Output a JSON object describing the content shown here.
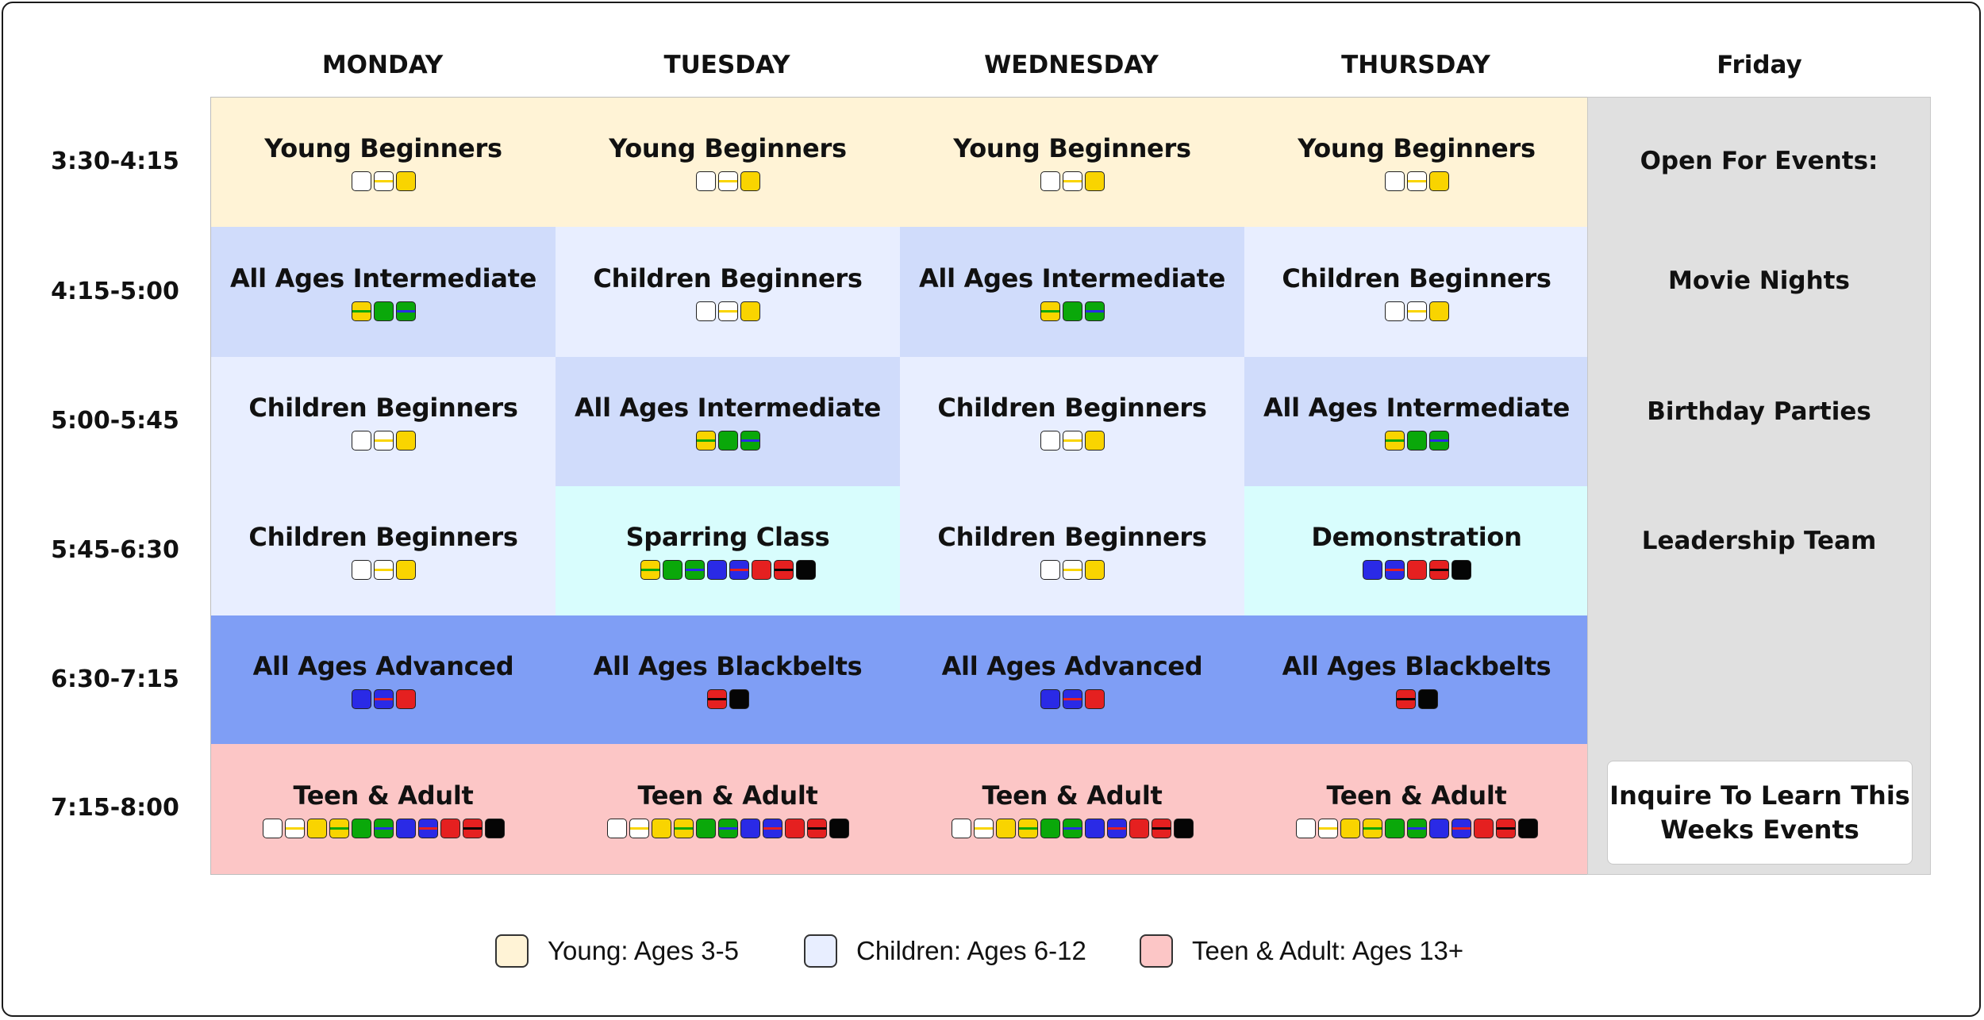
{
  "days": [
    "MONDAY",
    "TUESDAY",
    "WEDNESDAY",
    "THURSDAY",
    "Friday"
  ],
  "times": [
    "3:30-4:15",
    "4:15-5:00",
    "5:00-5:45",
    "5:45-6:30",
    "6:30-7:15",
    "7:15-8:00"
  ],
  "colors": {
    "young_bg": "#fff3d6",
    "children_bg": "#e8eeff",
    "intermediate_bg": "#d0dcfb",
    "special_bg": "#d8fdfd",
    "advanced_bg": "#7f9ef5",
    "teen_bg": "#fcc6c6",
    "friday_bg": "#e0e0e0"
  },
  "belt_colors": {
    "white": "#ffffff",
    "yellow": "#f9d400",
    "green": "#0aa80a",
    "blue": "#2a2ae6",
    "red": "#e52020",
    "black": "#050505"
  },
  "rows": [
    [
      {
        "title": "Young Beginners",
        "bg": "young",
        "belts": [
          "white",
          "white|yellow",
          "yellow"
        ]
      },
      {
        "title": "Young Beginners",
        "bg": "young",
        "belts": [
          "white",
          "white|yellow",
          "yellow"
        ]
      },
      {
        "title": "Young Beginners",
        "bg": "young",
        "belts": [
          "white",
          "white|yellow",
          "yellow"
        ]
      },
      {
        "title": "Young Beginners",
        "bg": "young",
        "belts": [
          "white",
          "white|yellow",
          "yellow"
        ]
      }
    ],
    [
      {
        "title": "All Ages Intermediate",
        "bg": "intermediate",
        "belts": [
          "yellow|green",
          "green",
          "green|blue"
        ]
      },
      {
        "title": "Children Beginners",
        "bg": "children",
        "belts": [
          "white",
          "white|yellow",
          "yellow"
        ]
      },
      {
        "title": "All Ages Intermediate",
        "bg": "intermediate",
        "belts": [
          "yellow|green",
          "green",
          "green|blue"
        ]
      },
      {
        "title": "Children Beginners",
        "bg": "children",
        "belts": [
          "white",
          "white|yellow",
          "yellow"
        ]
      }
    ],
    [
      {
        "title": "Children Beginners",
        "bg": "children",
        "belts": [
          "white",
          "white|yellow",
          "yellow"
        ]
      },
      {
        "title": "All Ages Intermediate",
        "bg": "intermediate",
        "belts": [
          "yellow|green",
          "green",
          "green|blue"
        ]
      },
      {
        "title": "Children Beginners",
        "bg": "children",
        "belts": [
          "white",
          "white|yellow",
          "yellow"
        ]
      },
      {
        "title": "All Ages Intermediate",
        "bg": "intermediate",
        "belts": [
          "yellow|green",
          "green",
          "green|blue"
        ]
      }
    ],
    [
      {
        "title": "Children Beginners",
        "bg": "children",
        "belts": [
          "white",
          "white|yellow",
          "yellow"
        ]
      },
      {
        "title": "Sparring Class",
        "bg": "special",
        "belts": [
          "yellow|green",
          "green",
          "green|blue",
          "blue",
          "blue|red",
          "red",
          "red|black",
          "black"
        ]
      },
      {
        "title": "Children Beginners",
        "bg": "children",
        "belts": [
          "white",
          "white|yellow",
          "yellow"
        ]
      },
      {
        "title": "Demonstration",
        "bg": "special",
        "belts": [
          "blue",
          "blue|red",
          "red",
          "red|black",
          "black"
        ]
      }
    ],
    [
      {
        "title": "All Ages Advanced",
        "bg": "advanced",
        "belts": [
          "blue",
          "blue|red",
          "red"
        ]
      },
      {
        "title": "All Ages Blackbelts",
        "bg": "advanced",
        "belts": [
          "red|black",
          "black"
        ]
      },
      {
        "title": "All Ages Advanced",
        "bg": "advanced",
        "belts": [
          "blue",
          "blue|red",
          "red"
        ]
      },
      {
        "title": "All Ages Blackbelts",
        "bg": "advanced",
        "belts": [
          "red|black",
          "black"
        ]
      }
    ],
    [
      {
        "title": "Teen & Adult",
        "bg": "teen",
        "belts": [
          "white",
          "white|yellow",
          "yellow",
          "yellow|green",
          "green",
          "green|blue",
          "blue",
          "blue|red",
          "red",
          "red|black",
          "black"
        ]
      },
      {
        "title": "Teen & Adult",
        "bg": "teen",
        "belts": [
          "white",
          "white|yellow",
          "yellow",
          "yellow|green",
          "green",
          "green|blue",
          "blue",
          "blue|red",
          "red",
          "red|black",
          "black"
        ]
      },
      {
        "title": "Teen & Adult",
        "bg": "teen",
        "belts": [
          "white",
          "white|yellow",
          "yellow",
          "yellow|green",
          "green",
          "green|blue",
          "blue",
          "blue|red",
          "red",
          "red|black",
          "black"
        ]
      },
      {
        "title": "Teen & Adult",
        "bg": "teen",
        "belts": [
          "white",
          "white|yellow",
          "yellow",
          "yellow|green",
          "green",
          "green|blue",
          "blue",
          "blue|red",
          "red",
          "red|black",
          "black"
        ]
      }
    ]
  ],
  "friday": {
    "items": [
      "Open For Events:",
      "Movie Nights",
      "Birthday Parties",
      "Leadership Team"
    ],
    "inquire_line1": "Inquire To Learn This",
    "inquire_line2": "Weeks Events"
  },
  "legend": [
    {
      "label": "Young: Ages 3-5",
      "color": "#fff3d6"
    },
    {
      "label": "Children: Ages 6-12",
      "color": "#e8eeff"
    },
    {
      "label": "Teen & Adult: Ages 13+",
      "color": "#fcc6c6"
    }
  ]
}
